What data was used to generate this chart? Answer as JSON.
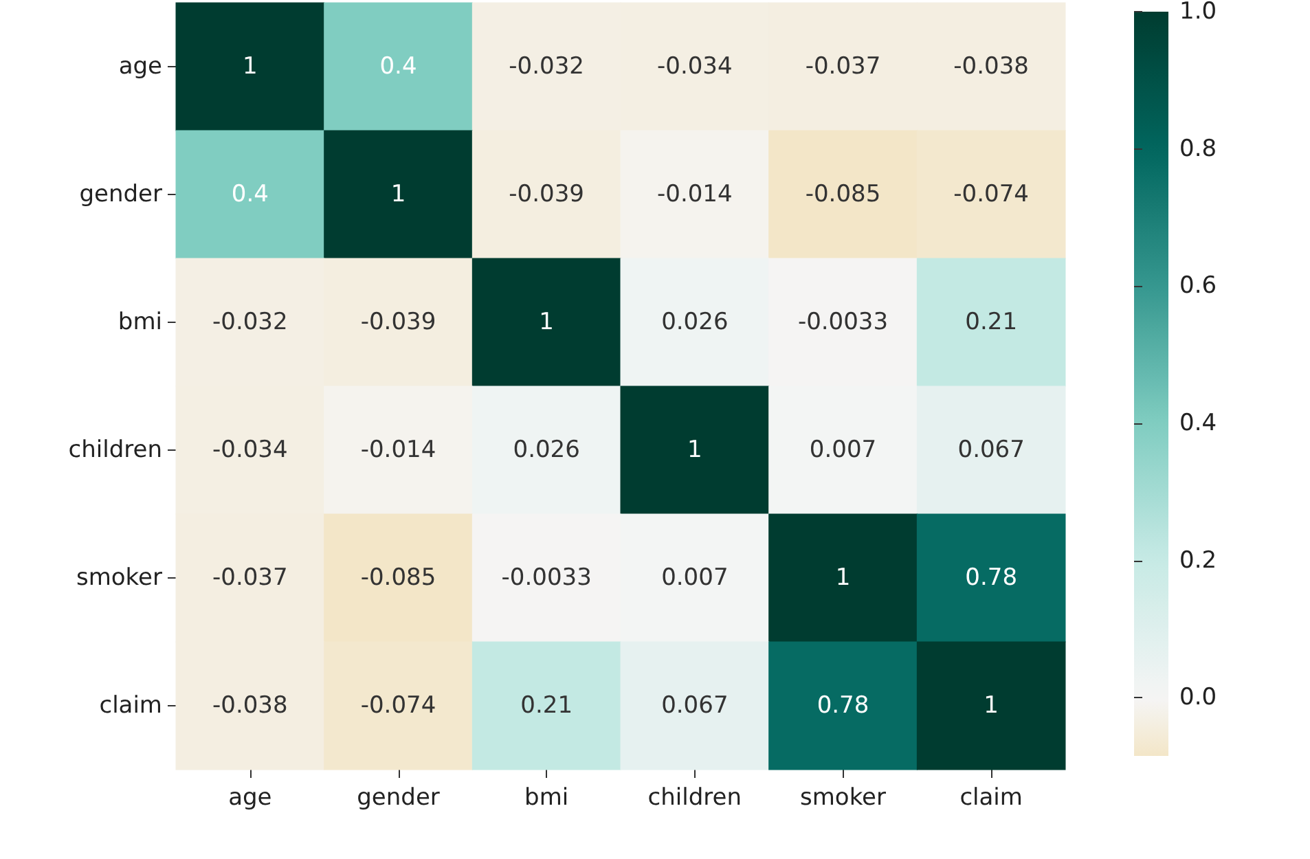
{
  "chart_data": {
    "type": "heatmap",
    "categories": [
      "age",
      "gender",
      "bmi",
      "children",
      "smoker",
      "claim"
    ],
    "y_categories": [
      "age",
      "gender",
      "bmi",
      "children",
      "smoker",
      "claim"
    ],
    "cells": [
      [
        1,
        0.4,
        -0.032,
        -0.034,
        -0.037,
        -0.038
      ],
      [
        0.4,
        1,
        -0.039,
        -0.014,
        -0.085,
        -0.074
      ],
      [
        -0.032,
        -0.039,
        1,
        0.026,
        -0.0033,
        0.21
      ],
      [
        -0.034,
        -0.014,
        0.026,
        1,
        0.007,
        0.067
      ],
      [
        -0.037,
        -0.085,
        -0.0033,
        0.007,
        1,
        0.78
      ],
      [
        -0.038,
        -0.074,
        0.21,
        0.067,
        0.78,
        1
      ]
    ],
    "data_labels": true,
    "clim": [
      -0.085,
      1
    ],
    "cticks": [
      {
        "value": 0,
        "label": "0.0"
      },
      {
        "value": 0.2,
        "label": "0.2"
      },
      {
        "value": 0.4,
        "label": "0.4"
      },
      {
        "value": 0.6,
        "label": "0.6"
      },
      {
        "value": 0.8,
        "label": "0.8"
      },
      {
        "value": 1,
        "label": "1.0"
      }
    ]
  }
}
